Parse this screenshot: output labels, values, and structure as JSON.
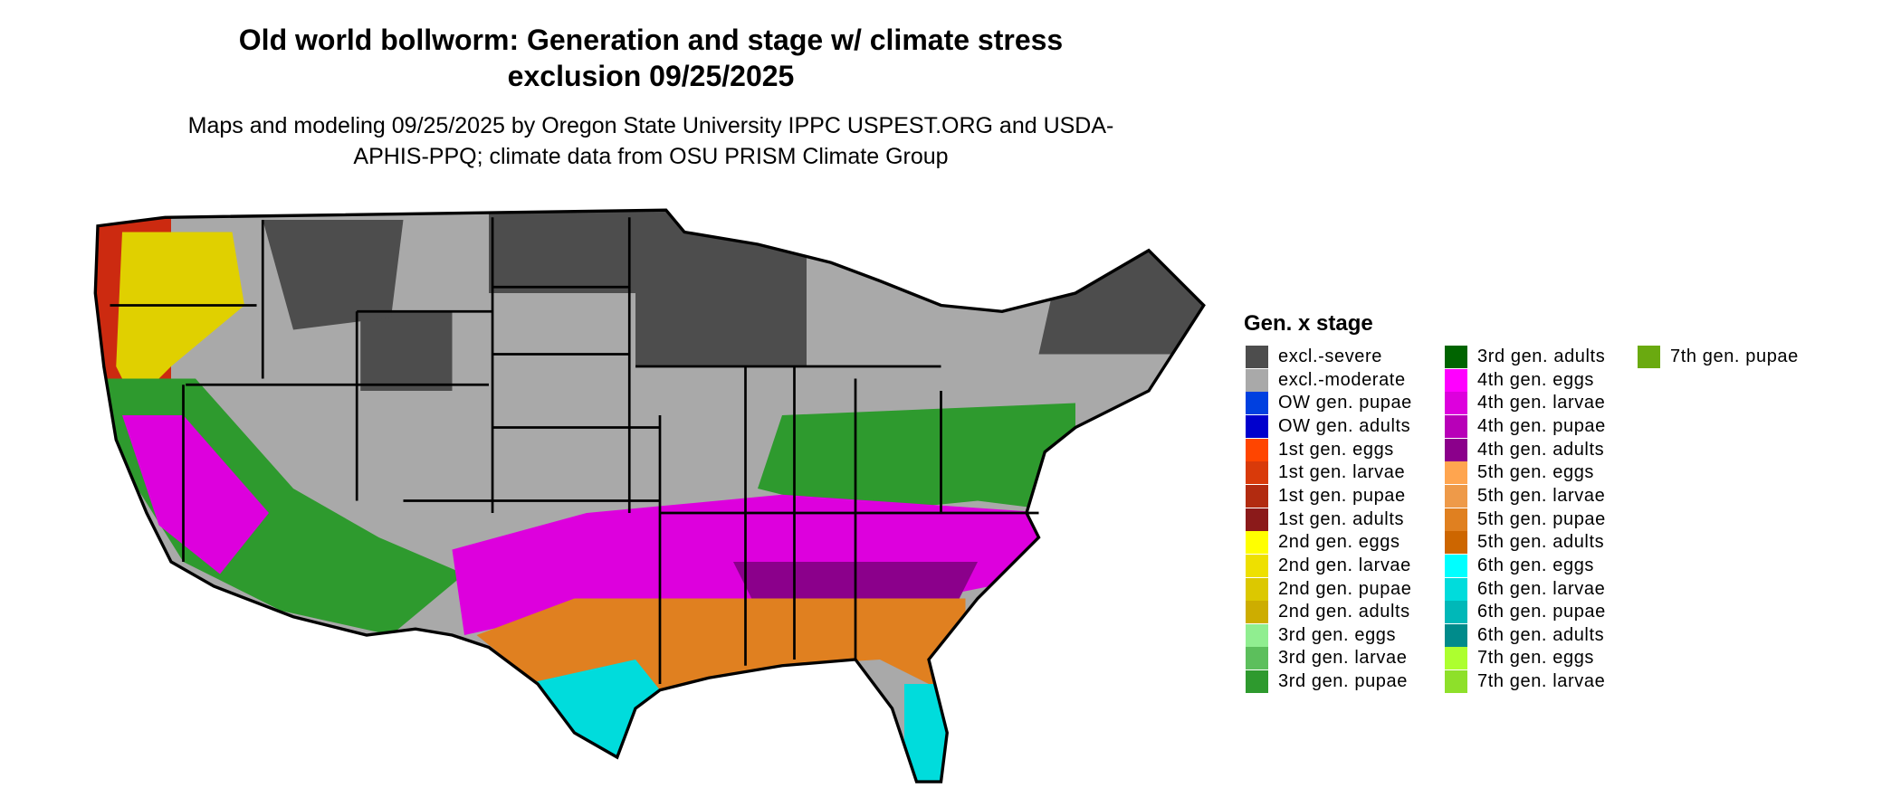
{
  "title": "Old world bollworm: Generation and stage w/ climate stress exclusion 09/25/2025",
  "subtitle": "Maps and modeling 09/25/2025 by Oregon State University IPPC USPEST.ORG and USDA-APHIS-PPQ; climate data from OSU PRISM Climate Group",
  "legend": {
    "title": "Gen. x stage",
    "items": [
      {
        "label": "excl.-severe",
        "color": "#4d4d4d"
      },
      {
        "label": "excl.-moderate",
        "color": "#a9a9a9"
      },
      {
        "label": "OW gen. pupae",
        "color": "#0040e0"
      },
      {
        "label": "OW gen. adults",
        "color": "#0000cd"
      },
      {
        "label": "1st gen. eggs",
        "color": "#ff4500"
      },
      {
        "label": "1st gen. larvae",
        "color": "#d93a0a"
      },
      {
        "label": "1st gen. pupae",
        "color": "#b22b10"
      },
      {
        "label": "1st gen. adults",
        "color": "#8b1a1a"
      },
      {
        "label": "2nd gen. eggs",
        "color": "#ffff00"
      },
      {
        "label": "2nd gen. larvae",
        "color": "#eee000"
      },
      {
        "label": "2nd gen. pupae",
        "color": "#dcc800"
      },
      {
        "label": "2nd gen. adults",
        "color": "#cdad00"
      },
      {
        "label": "3rd gen. eggs",
        "color": "#90ee90"
      },
      {
        "label": "3rd gen. larvae",
        "color": "#5cbf5c"
      },
      {
        "label": "3rd gen. pupae",
        "color": "#2e9a2e"
      },
      {
        "label": "3rd gen. adults",
        "color": "#006400"
      },
      {
        "label": "4th gen. eggs",
        "color": "#ff00ff"
      },
      {
        "label": "4th gen. larvae",
        "color": "#dd00dd"
      },
      {
        "label": "4th gen. pupae",
        "color": "#b800b8"
      },
      {
        "label": "4th gen. adults",
        "color": "#8b008b"
      },
      {
        "label": "5th gen. eggs",
        "color": "#ffa54f"
      },
      {
        "label": "5th gen. larvae",
        "color": "#ee9a49"
      },
      {
        "label": "5th gen. pupae",
        "color": "#e08020"
      },
      {
        "label": "5th gen. adults",
        "color": "#cd6600"
      },
      {
        "label": "6th gen. eggs",
        "color": "#00ffff"
      },
      {
        "label": "6th gen. larvae",
        "color": "#00dcdc"
      },
      {
        "label": "6th gen. pupae",
        "color": "#00b8b8"
      },
      {
        "label": "6th gen. adults",
        "color": "#008b8b"
      },
      {
        "label": "7th gen. eggs",
        "color": "#adff2f"
      },
      {
        "label": "7th gen. larvae",
        "color": "#8ee02a"
      },
      {
        "label": "7th gen. pupae",
        "color": "#6aaa10"
      }
    ]
  }
}
